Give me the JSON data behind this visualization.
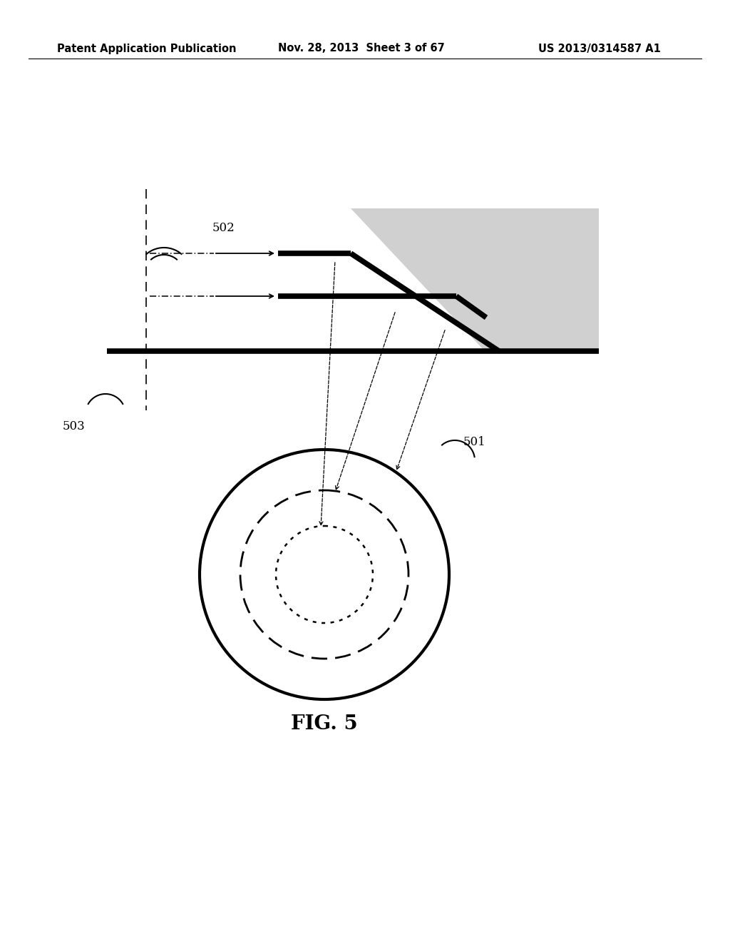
{
  "header_left": "Patent Application Publication",
  "header_center": "Nov. 28, 2013  Sheet 3 of 67",
  "header_right": "US 2013/0314587 A1",
  "fig_label": "FIG. 5",
  "label_501": "501",
  "label_502": "502",
  "label_503": "503",
  "bg_color": "#ffffff",
  "line_color": "#000000",
  "gray_fill": "#d0d0d0",
  "header_fontsize": 10.5,
  "fig_label_fontsize": 20
}
